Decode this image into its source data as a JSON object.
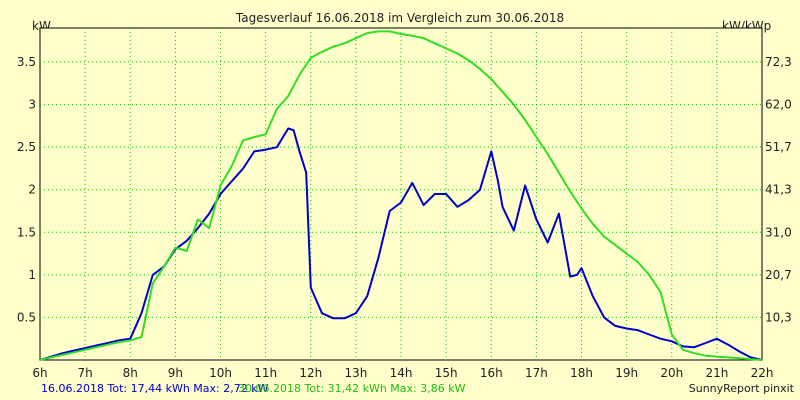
{
  "chart_data": {
    "type": "line",
    "title": "Tagesverlauf 16.06.2018 im Vergleich zum 30.06.2018",
    "ylabel_left": "kW",
    "ylabel_right": "kW/kWp",
    "xlim": [
      6,
      22
    ],
    "ylim": [
      0,
      3.9
    ],
    "grid": true,
    "x_tick_labels": [
      "6h",
      "7h",
      "8h",
      "9h",
      "10h",
      "11h",
      "12h",
      "13h",
      "14h",
      "15h",
      "16h",
      "17h",
      "18h",
      "19h",
      "20h",
      "21h",
      "22h"
    ],
    "y_ticks_left": [
      0.5,
      1,
      1.5,
      2,
      2.5,
      3,
      3.5
    ],
    "y_tick_labels_left": [
      "0.5",
      "1",
      "1.5",
      "2",
      "2.5",
      "3",
      "3.5"
    ],
    "y_tick_labels_right": [
      "10,3",
      "20,7",
      "31,0",
      "41,3",
      "51,7",
      "62,0",
      "72,3"
    ],
    "series": [
      {
        "name": "16.06.2018",
        "color": "#0000cc",
        "x": [
          6.0,
          6.25,
          6.5,
          6.75,
          7.0,
          7.25,
          7.5,
          7.75,
          8.0,
          8.25,
          8.5,
          8.75,
          9.0,
          9.25,
          9.5,
          9.75,
          10.0,
          10.25,
          10.5,
          10.75,
          11.0,
          11.25,
          11.5,
          11.62,
          11.75,
          11.9,
          12.0,
          12.25,
          12.5,
          12.75,
          13.0,
          13.25,
          13.5,
          13.75,
          14.0,
          14.25,
          14.5,
          14.75,
          15.0,
          15.25,
          15.5,
          15.75,
          16.0,
          16.15,
          16.25,
          16.5,
          16.75,
          17.0,
          17.25,
          17.5,
          17.75,
          17.9,
          18.0,
          18.25,
          18.5,
          18.75,
          19.0,
          19.25,
          19.5,
          19.75,
          20.0,
          20.25,
          20.5,
          20.75,
          21.0,
          21.25,
          21.5,
          21.75,
          22.0
        ],
        "values": [
          0.0,
          0.04,
          0.08,
          0.11,
          0.14,
          0.17,
          0.2,
          0.23,
          0.25,
          0.55,
          1.0,
          1.1,
          1.3,
          1.4,
          1.55,
          1.72,
          1.95,
          2.1,
          2.25,
          2.45,
          2.47,
          2.5,
          2.72,
          2.7,
          2.45,
          2.2,
          0.85,
          0.55,
          0.49,
          0.49,
          0.55,
          0.75,
          1.2,
          1.75,
          1.85,
          2.08,
          1.82,
          1.95,
          1.95,
          1.8,
          1.88,
          2.0,
          2.45,
          2.1,
          1.8,
          1.52,
          2.05,
          1.65,
          1.38,
          1.72,
          0.98,
          1.0,
          1.08,
          0.75,
          0.5,
          0.4,
          0.37,
          0.35,
          0.3,
          0.25,
          0.22,
          0.16,
          0.15,
          0.2,
          0.25,
          0.18,
          0.1,
          0.03,
          0.0
        ]
      },
      {
        "name": "30.06.2018",
        "color": "#33dd22",
        "x": [
          6.0,
          6.25,
          6.5,
          6.75,
          7.0,
          7.25,
          7.5,
          7.75,
          8.0,
          8.25,
          8.5,
          8.75,
          9.0,
          9.25,
          9.5,
          9.75,
          10.0,
          10.25,
          10.5,
          10.75,
          11.0,
          11.25,
          11.5,
          11.75,
          12.0,
          12.25,
          12.5,
          12.75,
          13.0,
          13.25,
          13.5,
          13.75,
          14.0,
          14.25,
          14.5,
          14.75,
          15.0,
          15.25,
          15.5,
          15.75,
          16.0,
          16.25,
          16.5,
          16.75,
          17.0,
          17.25,
          17.5,
          17.75,
          18.0,
          18.25,
          18.5,
          18.75,
          19.0,
          19.25,
          19.5,
          19.75,
          20.0,
          20.25,
          20.5,
          20.75,
          21.0,
          21.25,
          21.5,
          21.75,
          22.0
        ],
        "values": [
          0.0,
          0.03,
          0.06,
          0.09,
          0.12,
          0.15,
          0.18,
          0.21,
          0.23,
          0.27,
          0.9,
          1.1,
          1.32,
          1.28,
          1.65,
          1.55,
          2.05,
          2.28,
          2.58,
          2.62,
          2.65,
          2.95,
          3.1,
          3.35,
          3.55,
          3.62,
          3.68,
          3.72,
          3.78,
          3.84,
          3.86,
          3.86,
          3.83,
          3.81,
          3.78,
          3.72,
          3.66,
          3.6,
          3.52,
          3.42,
          3.3,
          3.15,
          3.0,
          2.82,
          2.62,
          2.42,
          2.2,
          1.98,
          1.78,
          1.6,
          1.45,
          1.35,
          1.25,
          1.15,
          1.0,
          0.8,
          0.3,
          0.12,
          0.08,
          0.05,
          0.04,
          0.03,
          0.02,
          0.01,
          0.0
        ]
      }
    ]
  },
  "footer": {
    "left_date": "16.06.2018",
    "left_summary": "Tot: 17,44 kWh Max: 2,72 kW",
    "right_date": "30.06.2018",
    "right_summary": "Tot: 31,42 kWh Max: 3,86 kW",
    "credit": "SunnyReport pinxit"
  }
}
